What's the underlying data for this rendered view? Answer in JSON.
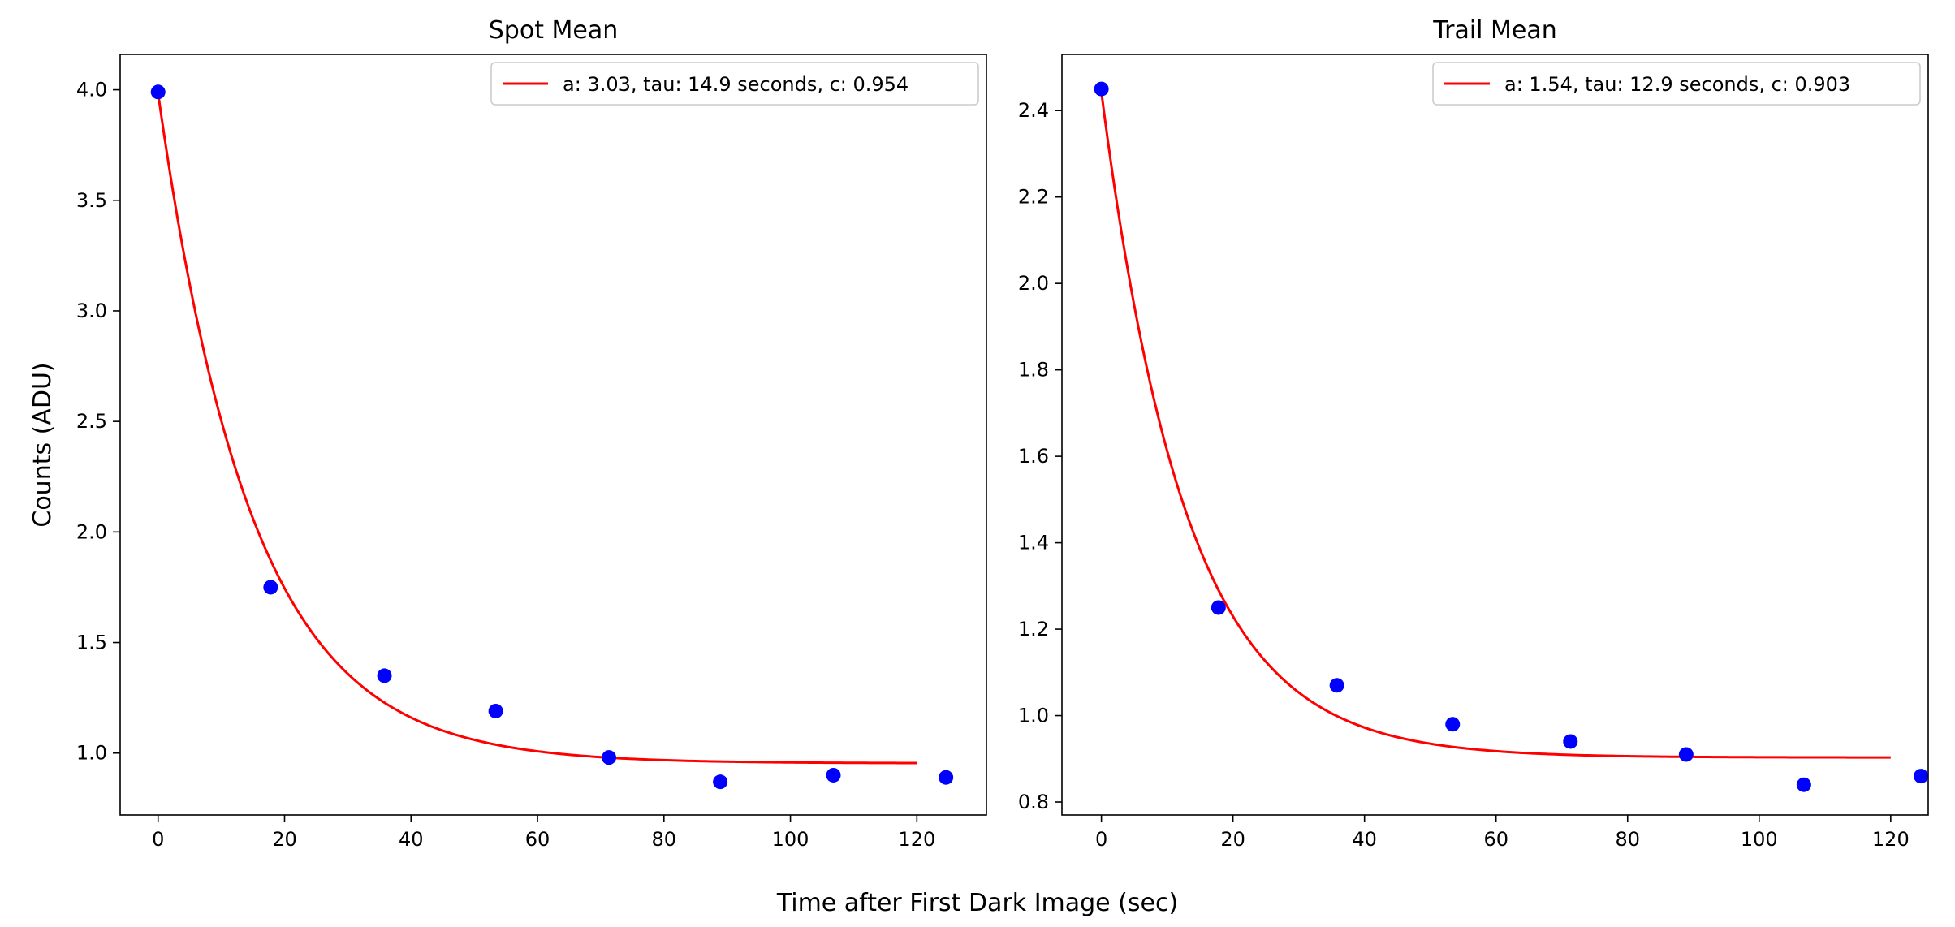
{
  "figure": {
    "ylabel": "Counts (ADU)",
    "xlabel": "Time after First Dark Image (sec)"
  },
  "chart_data": [
    {
      "type": "scatter",
      "title": "Spot Mean",
      "xlim": [
        -6,
        131
      ],
      "ylim": [
        0.72,
        4.16
      ],
      "xticks": [
        0,
        20,
        40,
        60,
        80,
        100,
        120
      ],
      "yticks": [
        1.0,
        1.5,
        2.0,
        2.5,
        3.0,
        3.5,
        4.0
      ],
      "ytick_labels": [
        "1.0",
        "1.5",
        "2.0",
        "2.5",
        "3.0",
        "3.5",
        "4.0"
      ],
      "legend_position": "top-right",
      "grid": false,
      "series": [
        {
          "kind": "points",
          "color": "#0000ff",
          "x": [
            0,
            17.8,
            35.8,
            53.4,
            71.3,
            88.9,
            106.8,
            124.6
          ],
          "y": [
            3.99,
            1.75,
            1.35,
            1.19,
            0.98,
            0.87,
            0.9,
            0.89
          ]
        },
        {
          "kind": "fit",
          "name": "a: 3.03, tau: 14.9 seconds, c: 0.954",
          "color": "#ff0000",
          "a": 3.03,
          "tau": 14.9,
          "c": 0.954,
          "x_range": [
            0,
            120
          ]
        }
      ]
    },
    {
      "type": "scatter",
      "title": "Trail Mean",
      "xlim": [
        -6,
        125.7
      ],
      "ylim": [
        0.77,
        2.53
      ],
      "xticks": [
        0,
        20,
        40,
        60,
        80,
        100,
        120
      ],
      "yticks": [
        0.8,
        1.0,
        1.2,
        1.4,
        1.6,
        1.8,
        2.0,
        2.2,
        2.4
      ],
      "ytick_labels": [
        "0.8",
        "1.0",
        "1.2",
        "1.4",
        "1.6",
        "1.8",
        "2.0",
        "2.2",
        "2.4"
      ],
      "legend_position": "top-right",
      "grid": false,
      "series": [
        {
          "kind": "points",
          "color": "#0000ff",
          "x": [
            0,
            17.8,
            35.8,
            53.4,
            71.3,
            88.9,
            106.8,
            124.6
          ],
          "y": [
            2.45,
            1.25,
            1.07,
            0.98,
            0.94,
            0.91,
            0.84,
            0.86
          ]
        },
        {
          "kind": "fit",
          "name": "a: 1.54, tau: 12.9 seconds, c: 0.903",
          "color": "#ff0000",
          "a": 1.54,
          "tau": 12.9,
          "c": 0.903,
          "x_range": [
            0,
            120
          ]
        }
      ]
    }
  ]
}
